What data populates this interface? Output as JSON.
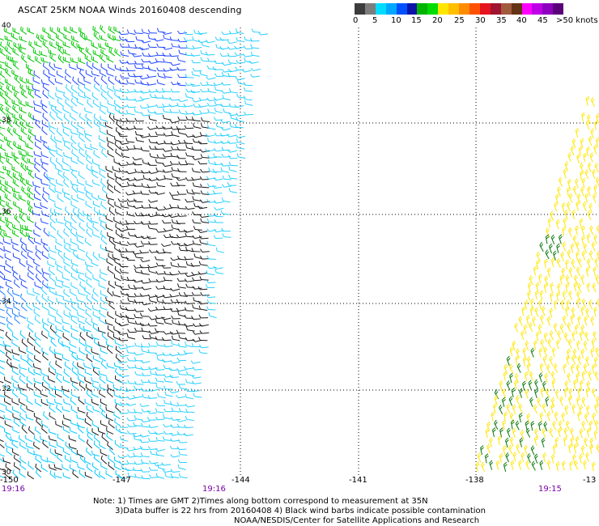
{
  "title": "ASCAT 25KM NOAA Winds 20160408 descending",
  "legend": {
    "colors": [
      "#3c3c3c",
      "#7d7d7d",
      "#00dcff",
      "#00a8ff",
      "#0050ff",
      "#0a14a8",
      "#00b400",
      "#00dc00",
      "#ffe600",
      "#ffbe00",
      "#ff8c00",
      "#ff5000",
      "#e6141e",
      "#a01432",
      "#a05a3c",
      "#643214",
      "#ff00ff",
      "#be00e6",
      "#8c00be",
      "#5a0078"
    ],
    "tick_labels": [
      "0",
      "5",
      "10",
      "15",
      "20",
      "25",
      "30",
      "35",
      "40",
      "45",
      ">50 knots"
    ]
  },
  "lat_labels": [
    "40",
    "38",
    "36",
    "34",
    "32",
    "30"
  ],
  "lon_labels": [
    "-150",
    "-147",
    "-144",
    "-141",
    "-138",
    "-13"
  ],
  "times": [
    "19:16",
    "19:16",
    "19:15"
  ],
  "notes": [
    "Note: 1) Times are GMT 2)Times along bottom correspond to measurement at 35N",
    "3)Data buffer is 22 hrs from 20160408 4) Black wind barbs indicate possible contamination",
    "NOAA/NESDIS/Center for Satellite Applications and Research"
  ]
}
